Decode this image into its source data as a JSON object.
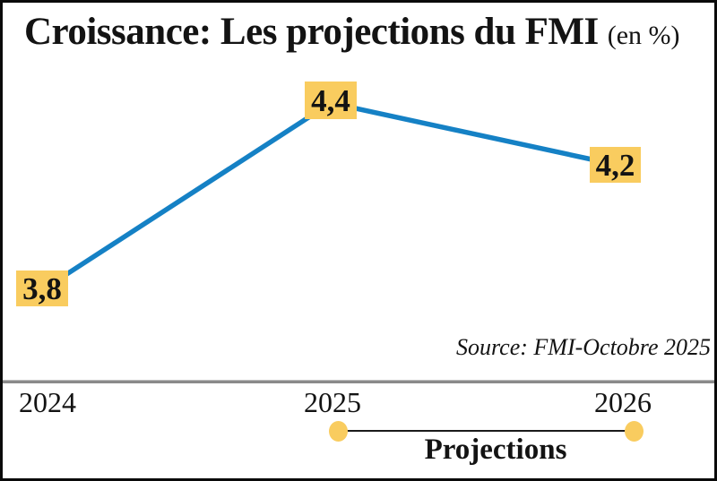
{
  "title": {
    "main": "Croissance: Les projections du FMI",
    "unit": "(en %)"
  },
  "source_note": "Source: FMI-Octobre 2025",
  "colors": {
    "line_blue": "#1581C5",
    "label_yellow": "#F9CC5F",
    "divider_gray": "#8A8A8A",
    "text_black": "#131313"
  },
  "chart_data": {
    "type": "line",
    "title": "Croissance: Les projections du FMI (en %)",
    "categories": [
      "2024",
      "2025",
      "2026"
    ],
    "values": [
      3.8,
      4.4,
      4.2
    ],
    "point_labels": [
      "3,8",
      "4,4",
      "4,2"
    ],
    "series_name": "Croissance (%)",
    "ylim": [
      3.8,
      4.4
    ],
    "grid": false,
    "legend_position": "bottom",
    "projection_range": {
      "from": "2025",
      "to": "2026",
      "label": "Projections"
    },
    "source": "Source: FMI-Octobre 2025"
  }
}
